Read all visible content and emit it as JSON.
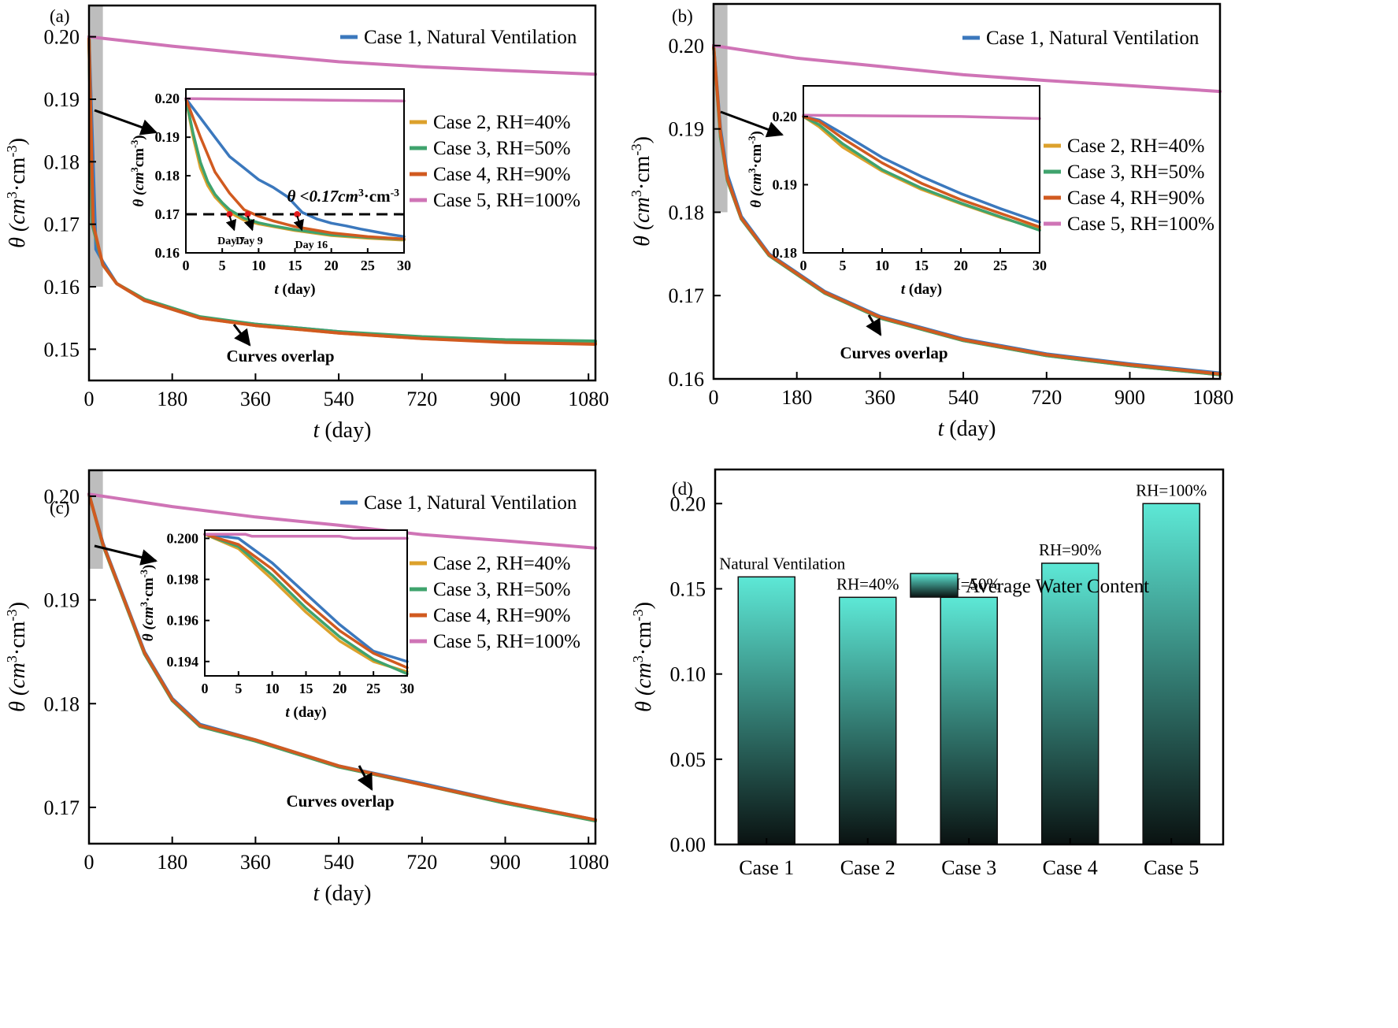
{
  "colors": {
    "case1": "#3b78bd",
    "case2": "#dca12c",
    "case3": "#3fa36d",
    "case4": "#d15a1f",
    "case5": "#cf74b6",
    "bar_top": "#5de8d6",
    "bar_bottom": "#0a1211",
    "shade": "#bdbdbd"
  },
  "legend_entries": [
    "Case 1, Natural Ventilation",
    "Case 2, RH=40%",
    "Case 3, RH=50%",
    "Case 4, RH=90%",
    "Case 5, RH=100%"
  ],
  "chart_data": [
    {
      "panel": "(a)",
      "type": "line",
      "xlabel": "t (day)",
      "ylabel": "θ (cm³·cm⁻³)",
      "xlim": [
        0,
        1095
      ],
      "ylim": [
        0.145,
        0.205
      ],
      "xticks": [
        "0",
        "180",
        "360",
        "540",
        "720",
        "900",
        "1080"
      ],
      "yticks": [
        "0.15",
        "0.16",
        "0.17",
        "0.18",
        "0.19",
        "0.20"
      ],
      "shaded_region": {
        "x": [
          0,
          30
        ],
        "y": [
          0.16,
          0.205
        ]
      },
      "series": [
        {
          "name": "Case 1, Natural Ventilation",
          "x": [
            0,
            15,
            30,
            60,
            120,
            240,
            360,
            540,
            720,
            900,
            1095
          ],
          "y": [
            0.2,
            0.166,
            0.164,
            0.1605,
            0.1578,
            0.155,
            0.154,
            0.1528,
            0.1518,
            0.1512,
            0.151
          ]
        },
        {
          "name": "Case 2, RH=40%",
          "x": [
            0,
            7,
            30,
            60,
            120,
            240,
            360,
            540,
            720,
            900,
            1095
          ],
          "y": [
            0.2,
            0.17,
            0.1635,
            0.1605,
            0.1578,
            0.155,
            0.1538,
            0.1526,
            0.1517,
            0.1512,
            0.151
          ]
        },
        {
          "name": "Case 3, RH=50%",
          "x": [
            0,
            7,
            30,
            60,
            120,
            240,
            360,
            540,
            720,
            900,
            1095
          ],
          "y": [
            0.2,
            0.17,
            0.1635,
            0.1605,
            0.158,
            0.1552,
            0.154,
            0.1528,
            0.152,
            0.1515,
            0.1513
          ]
        },
        {
          "name": "Case 4, RH=90%",
          "x": [
            0,
            9,
            30,
            60,
            120,
            240,
            360,
            540,
            720,
            900,
            1095
          ],
          "y": [
            0.2,
            0.17,
            0.1635,
            0.1605,
            0.1578,
            0.155,
            0.1538,
            0.1526,
            0.1517,
            0.1511,
            0.1508
          ]
        },
        {
          "name": "Case 5, RH=100%",
          "x": [
            0,
            180,
            360,
            540,
            720,
            900,
            1095
          ],
          "y": [
            0.2,
            0.1985,
            0.1972,
            0.196,
            0.1952,
            0.1946,
            0.194
          ]
        }
      ],
      "annotation": "Curves overlap",
      "inset": {
        "xlabel": "t (day)",
        "ylabel": "θ (cm³cm⁻³)",
        "xlim": [
          0,
          30
        ],
        "ylim": [
          0.16,
          0.2025
        ],
        "xticks": [
          "0",
          "5",
          "10",
          "15",
          "20",
          "25",
          "30"
        ],
        "yticks": [
          "0.16",
          "0.17",
          "0.18",
          "0.19",
          "0.20"
        ],
        "threshold": 0.17,
        "threshold_label": "θ <0.17cm³·cm⁻³",
        "markers": [
          {
            "x": 6,
            "label": "Day 7"
          },
          {
            "x": 8.5,
            "label": "Day 9"
          },
          {
            "x": 15.3,
            "label": "Day 16"
          }
        ],
        "series": [
          {
            "name": "Case 1, Natural Ventilation",
            "x": [
              0,
              2,
              4,
              6,
              8,
              10,
              12,
              14,
              16,
              18,
              20,
              22,
              24,
              26,
              28,
              30
            ],
            "y": [
              0.2,
              0.195,
              0.19,
              0.185,
              0.182,
              0.179,
              0.177,
              0.1745,
              0.1705,
              0.1688,
              0.1677,
              0.167,
              0.1662,
              0.1655,
              0.1648,
              0.1642
            ]
          },
          {
            "name": "Case 2, RH=40%",
            "x": [
              0,
              1,
              2,
              3,
              4,
              5,
              6,
              8,
              10,
              12,
              15,
              20,
              25,
              30
            ],
            "y": [
              0.2,
              0.19,
              0.182,
              0.1775,
              0.1745,
              0.1725,
              0.1705,
              0.1685,
              0.1675,
              0.1668,
              0.1658,
              0.1645,
              0.1638,
              0.1633
            ]
          },
          {
            "name": "Case 3, RH=50%",
            "x": [
              0,
              1,
              2,
              3,
              4,
              5,
              6,
              8,
              10,
              12,
              15,
              20,
              25,
              30
            ],
            "y": [
              0.2,
              0.191,
              0.1835,
              0.1785,
              0.1752,
              0.173,
              0.1712,
              0.169,
              0.1678,
              0.167,
              0.166,
              0.1647,
              0.164,
              0.1635
            ]
          },
          {
            "name": "Case 4, RH=90%",
            "x": [
              0,
              2,
              4,
              6,
              8,
              10,
              12,
              15,
              20,
              25,
              30
            ],
            "y": [
              0.2,
              0.19,
              0.181,
              0.1755,
              0.1712,
              0.1695,
              0.1683,
              0.1668,
              0.1652,
              0.1642,
              0.1636
            ]
          },
          {
            "name": "Case 5, RH=100%",
            "x": [
              0,
              10,
              20,
              30
            ],
            "y": [
              0.2,
              0.1998,
              0.1996,
              0.1994
            ]
          }
        ]
      }
    },
    {
      "panel": "(b)",
      "type": "line",
      "xlabel": "t (day)",
      "ylabel": "θ (cm³·cm⁻³)",
      "xlim": [
        0,
        1095
      ],
      "ylim": [
        0.16,
        0.205
      ],
      "xticks": [
        "0",
        "180",
        "360",
        "540",
        "720",
        "900",
        "1080"
      ],
      "yticks": [
        "0.16",
        "0.17",
        "0.18",
        "0.19",
        "0.20"
      ],
      "shaded_region": {
        "x": [
          0,
          30
        ],
        "y": [
          0.18,
          0.205
        ]
      },
      "series": [
        {
          "name": "Case 1, Natural Ventilation",
          "x": [
            0,
            15,
            30,
            60,
            120,
            240,
            360,
            540,
            720,
            900,
            1095
          ],
          "y": [
            0.2,
            0.19,
            0.1845,
            0.1795,
            0.175,
            0.1705,
            0.1675,
            0.1648,
            0.163,
            0.1618,
            0.1607
          ]
        },
        {
          "name": "Case 2, RH=40%",
          "x": [
            0,
            15,
            30,
            60,
            120,
            240,
            360,
            540,
            720,
            900,
            1095
          ],
          "y": [
            0.2,
            0.189,
            0.1838,
            0.1792,
            0.1748,
            0.1703,
            0.1673,
            0.1646,
            0.1628,
            0.1616,
            0.1605
          ]
        },
        {
          "name": "Case 3, RH=50%",
          "x": [
            0,
            15,
            30,
            60,
            120,
            240,
            360,
            540,
            720,
            900,
            1095
          ],
          "y": [
            0.2,
            0.189,
            0.1838,
            0.1792,
            0.1748,
            0.1703,
            0.1673,
            0.1646,
            0.1628,
            0.1616,
            0.1605
          ]
        },
        {
          "name": "Case 4, RH=90%",
          "x": [
            0,
            15,
            30,
            60,
            120,
            240,
            360,
            540,
            720,
            900,
            1095
          ],
          "y": [
            0.2,
            0.1895,
            0.184,
            0.1793,
            0.1749,
            0.1704,
            0.1674,
            0.1647,
            0.1629,
            0.1617,
            0.1606
          ]
        },
        {
          "name": "Case 5, RH=100%",
          "x": [
            0,
            180,
            360,
            540,
            720,
            900,
            1095
          ],
          "y": [
            0.2,
            0.1985,
            0.1975,
            0.1965,
            0.1958,
            0.1952,
            0.1945
          ]
        }
      ],
      "annotation": "Curves overlap",
      "inset": {
        "xlabel": "t (day)",
        "ylabel": "θ (cm³·cm⁻³)",
        "xlim": [
          0,
          30
        ],
        "ylim": [
          0.18,
          0.2045
        ],
        "xticks": [
          "0",
          "5",
          "10",
          "15",
          "20",
          "25",
          "30"
        ],
        "yticks": [
          "0.18",
          "0.19",
          "0.20"
        ],
        "series": [
          {
            "name": "Case 1, Natural Ventilation",
            "x": [
              0,
              2,
              5,
              10,
              15,
              20,
              25,
              30
            ],
            "y": [
              0.2,
              0.1995,
              0.1975,
              0.194,
              0.1912,
              0.1887,
              0.1865,
              0.1845
            ]
          },
          {
            "name": "Case 2, RH=40%",
            "x": [
              0,
              2,
              5,
              10,
              15,
              20,
              25,
              30
            ],
            "y": [
              0.2,
              0.1985,
              0.1955,
              0.192,
              0.1893,
              0.1872,
              0.1852,
              0.1835
            ]
          },
          {
            "name": "Case 3, RH=50%",
            "x": [
              0,
              2,
              5,
              10,
              15,
              20,
              25,
              30
            ],
            "y": [
              0.2,
              0.1988,
              0.196,
              0.1922,
              0.1895,
              0.1873,
              0.1853,
              0.1833
            ]
          },
          {
            "name": "Case 4, RH=90%",
            "x": [
              0,
              2,
              5,
              10,
              15,
              20,
              25,
              30
            ],
            "y": [
              0.2,
              0.1993,
              0.1968,
              0.1932,
              0.1902,
              0.1878,
              0.1858,
              0.1838
            ]
          },
          {
            "name": "Case 5, RH=100%",
            "x": [
              0,
              10,
              20,
              30
            ],
            "y": [
              0.2002,
              0.2001,
              0.2,
              0.1997
            ]
          }
        ]
      }
    },
    {
      "panel": "(c)",
      "type": "line",
      "xlabel": "t (day)",
      "ylabel": "θ (cm³·cm⁻³)",
      "xlim": [
        0,
        1095
      ],
      "ylim": [
        0.1665,
        0.2025
      ],
      "xticks": [
        "0",
        "180",
        "360",
        "540",
        "720",
        "900",
        "1080"
      ],
      "yticks": [
        "0.17",
        "0.18",
        "0.19",
        "0.20"
      ],
      "shaded_region": {
        "x": [
          0,
          30
        ],
        "y": [
          0.193,
          0.2025
        ]
      },
      "series": [
        {
          "name": "Case 1, Natural Ventilation",
          "x": [
            0,
            30,
            60,
            120,
            180,
            240,
            360,
            540,
            720,
            900,
            1095
          ],
          "y": [
            0.2002,
            0.1955,
            0.192,
            0.185,
            0.1805,
            0.178,
            0.1765,
            0.174,
            0.1723,
            0.1705,
            0.1688
          ]
        },
        {
          "name": "Case 2, RH=40%",
          "x": [
            0,
            30,
            60,
            120,
            180,
            240,
            360,
            540,
            720,
            900,
            1095
          ],
          "y": [
            0.2002,
            0.1953,
            0.1918,
            0.1848,
            0.1803,
            0.1778,
            0.1764,
            0.1739,
            0.1722,
            0.1704,
            0.1687
          ]
        },
        {
          "name": "Case 3, RH=50%",
          "x": [
            0,
            30,
            60,
            120,
            180,
            240,
            360,
            540,
            720,
            900,
            1095
          ],
          "y": [
            0.2002,
            0.1953,
            0.1918,
            0.1848,
            0.1803,
            0.1778,
            0.1764,
            0.1739,
            0.1722,
            0.1704,
            0.1687
          ]
        },
        {
          "name": "Case 4, RH=90%",
          "x": [
            0,
            30,
            60,
            120,
            180,
            240,
            360,
            540,
            720,
            900,
            1095
          ],
          "y": [
            0.2002,
            0.1954,
            0.1919,
            0.1849,
            0.1804,
            0.1779,
            0.1765,
            0.174,
            0.1722,
            0.1705,
            0.1688
          ]
        },
        {
          "name": "Case 5, RH=100%",
          "x": [
            0,
            180,
            360,
            540,
            720,
            900,
            1095
          ],
          "y": [
            0.2002,
            0.199,
            0.198,
            0.1972,
            0.1963,
            0.1957,
            0.195
          ]
        }
      ],
      "annotation": "Curves overlap",
      "inset": {
        "xlabel": "t (day)",
        "ylabel": "θ (cm³·cm⁻³)",
        "xlim": [
          0,
          30
        ],
        "ylim": [
          0.1933,
          0.2004
        ],
        "xticks": [
          "0",
          "5",
          "10",
          "15",
          "20",
          "25",
          "30"
        ],
        "yticks": [
          "0.194",
          "0.196",
          "0.198",
          "0.200"
        ],
        "series": [
          {
            "name": "Case 1, Natural Ventilation",
            "x": [
              0,
              5,
              10,
              15,
              20,
              25,
              30
            ],
            "y": [
              0.2002,
              0.2,
              0.1988,
              0.1973,
              0.1958,
              0.1945,
              0.194
            ]
          },
          {
            "name": "Case 2, RH=40%",
            "x": [
              0,
              5,
              10,
              15,
              20,
              25,
              30
            ],
            "y": [
              0.2002,
              0.1995,
              0.198,
              0.1964,
              0.195,
              0.194,
              0.1935
            ]
          },
          {
            "name": "Case 3, RH=50%",
            "x": [
              0,
              5,
              10,
              15,
              20,
              25,
              30
            ],
            "y": [
              0.2002,
              0.1996,
              0.1982,
              0.1966,
              0.1952,
              0.1941,
              0.1934
            ]
          },
          {
            "name": "Case 4, RH=90%",
            "x": [
              0,
              5,
              10,
              15,
              20,
              25,
              30
            ],
            "y": [
              0.2002,
              0.1997,
              0.1985,
              0.1969,
              0.1955,
              0.1944,
              0.1937
            ]
          },
          {
            "name": "Case 5, RH=100%",
            "x": [
              0,
              6,
              7,
              20,
              22,
              30
            ],
            "y": [
              0.2002,
              0.2002,
              0.2001,
              0.2001,
              0.2,
              0.2
            ]
          }
        ]
      }
    },
    {
      "panel": "(d)",
      "type": "bar",
      "ylabel": "θ (cm³·cm⁻³)",
      "ylim": [
        0,
        0.22
      ],
      "yticks": [
        "0.00",
        "0.05",
        "0.10",
        "0.15",
        "0.20"
      ],
      "legend": "Average Water Content",
      "categories": [
        "Case 1",
        "Case 2",
        "Case 3",
        "Case 4",
        "Case 5"
      ],
      "values": [
        0.157,
        0.145,
        0.145,
        0.165,
        0.2
      ],
      "bar_labels": [
        "Natural Ventilation",
        "RH=40%",
        "RH=50%",
        "RH=90%",
        "RH=100%"
      ]
    }
  ]
}
